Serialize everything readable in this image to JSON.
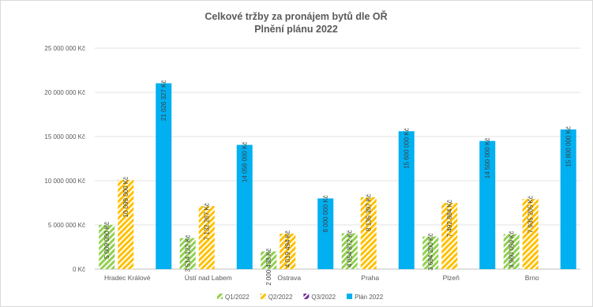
{
  "chart_data": {
    "type": "bar",
    "title": "Celkové tržby za pronájem bytů dle OŘ",
    "subtitle": "Plnění plánu 2022",
    "xlabel": "",
    "ylabel": "",
    "ylim": [
      0,
      25000000
    ],
    "y_ticks": [
      0,
      5000000,
      10000000,
      15000000,
      20000000,
      25000000
    ],
    "y_tick_labels": [
      "0 Kč",
      "5 000 000 Kč",
      "10 000 000 Kč",
      "15 000 000 Kč",
      "20 000 000 Kč",
      "25 000 000 Kč"
    ],
    "categories": [
      "Hradec Králové",
      "Ústí nad Labem",
      "Ostrava",
      "Praha",
      "Plzeň",
      "Brno"
    ],
    "grid": true,
    "legend_position": "bottom",
    "series": [
      {
        "name": "Q1/2022",
        "color": "#92d050",
        "pattern": "hatched",
        "values": [
          5009000,
          3514122,
          2000438,
          4054872,
          3694200,
          3960059
        ],
        "labels": [
          "5 009 000 Kč",
          "3 514 122 Kč",
          "2 000 438 Kč",
          "4 054 872 Kč",
          "3 694 200 Kč",
          "3 960 059 Kč"
        ]
      },
      {
        "name": "Q2/2022",
        "color": "#ffc000",
        "pattern": "hatched",
        "values": [
          10099000,
          7132267,
          4019494,
          8135397,
          7492884,
          7935205
        ],
        "labels": [
          "10 099 000 Kč",
          "7 132 267 Kč",
          "4 019 494 Kč",
          "8 135 397 Kč",
          "7 492 884 Kč",
          "7 935 205 Kč"
        ]
      },
      {
        "name": "Q3/2022",
        "color": "#7030a0",
        "pattern": "hatched",
        "values": [
          null,
          null,
          null,
          null,
          null,
          null
        ],
        "labels": []
      },
      {
        "name": "Plán 2022",
        "color": "#00b0f0",
        "pattern": "solid",
        "values": [
          21026327,
          14056000,
          8000000,
          15600000,
          14500000,
          15800000
        ],
        "labels": [
          "21 026 327 Kč",
          "14 056 000 Kč",
          "8 000 000 Kč",
          "15 600 000 Kč",
          "14 500 000 Kč",
          "15 800 000 Kč"
        ]
      }
    ]
  }
}
